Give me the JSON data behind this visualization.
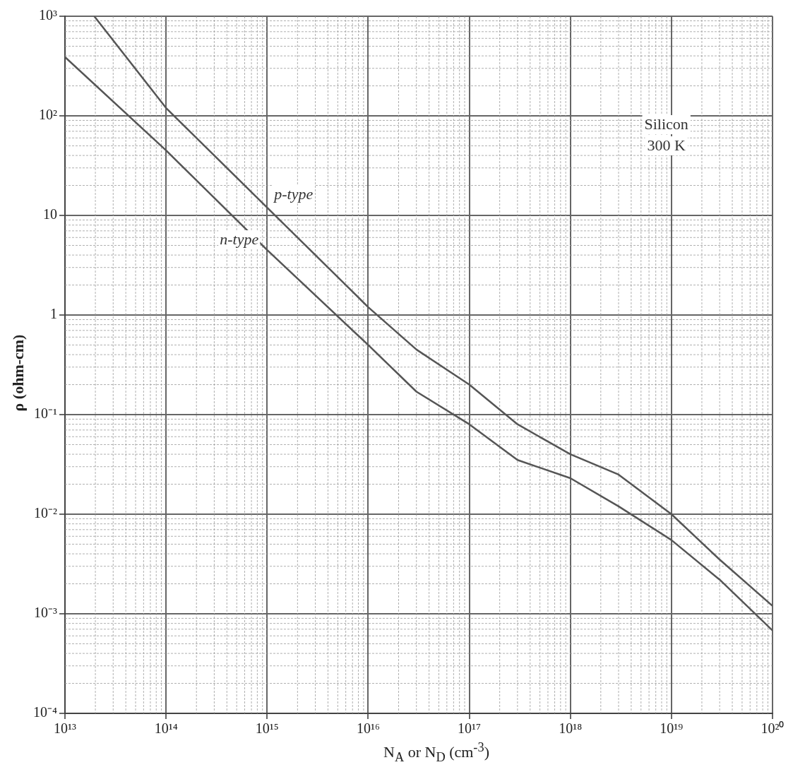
{
  "chart_data": {
    "type": "line",
    "xlabel": "N$_{A}$ or N$_{D}$ (cm$^{-3}$)",
    "ylabel": "ρ (ohm-cm)",
    "log": "xy",
    "grid": true,
    "legend": false,
    "marker": "none",
    "line_style": "solid",
    "xlim": [
      10000000000000.0,
      1e+20
    ],
    "ylim": [
      0.0001,
      1000
    ],
    "xticks": [
      {
        "value": 10000000000000.0,
        "label": "10¹³"
      },
      {
        "value": 100000000000000.0,
        "label": "10¹⁴"
      },
      {
        "value": 1000000000000000.0,
        "label": "10¹⁵"
      },
      {
        "value": 1e+16,
        "label": "10¹⁶"
      },
      {
        "value": 1e+17,
        "label": "10¹⁷"
      },
      {
        "value": 1e+18,
        "label": "10¹⁸"
      },
      {
        "value": 1e+19,
        "label": "10¹⁹"
      },
      {
        "value": 1e+20,
        "label": "10²⁰"
      }
    ],
    "yticks": [
      {
        "value": 0.0001,
        "label": "10⁻⁴"
      },
      {
        "value": 0.001,
        "label": "10⁻³"
      },
      {
        "value": 0.01,
        "label": "10⁻²"
      },
      {
        "value": 0.1,
        "label": "10⁻¹"
      },
      1,
      10,
      {
        "value": 100,
        "label": "10²"
      },
      {
        "value": 1000,
        "label": "10³"
      }
    ],
    "annotations": [
      "Silicon",
      "300 K"
    ],
    "series": [
      {
        "name": "p-type",
        "color": "#555555",
        "x": [
          19500000000000.0,
          100000000000000.0,
          1000000000000000.0,
          1e+16,
          3e+16,
          1e+17,
          3e+17,
          1e+18,
          3e+18,
          1e+19,
          3e+19,
          1e+20
        ],
        "values": [
          1000,
          120,
          12,
          1.2,
          0.45,
          0.2,
          0.08,
          0.04,
          0.025,
          0.01,
          0.0035,
          0.0012
        ]
      },
      {
        "name": "n-type",
        "color": "#555555",
        "x": [
          10000000000000.0,
          100000000000000.0,
          1000000000000000.0,
          1e+16,
          3e+16,
          1e+17,
          3e+17,
          1e+18,
          3e+18,
          1e+19,
          3e+19,
          1e+20
        ],
        "values": [
          390,
          45,
          4.5,
          0.5,
          0.17,
          0.08,
          0.035,
          0.023,
          0.012,
          0.0055,
          0.0022,
          0.00068
        ]
      }
    ]
  }
}
